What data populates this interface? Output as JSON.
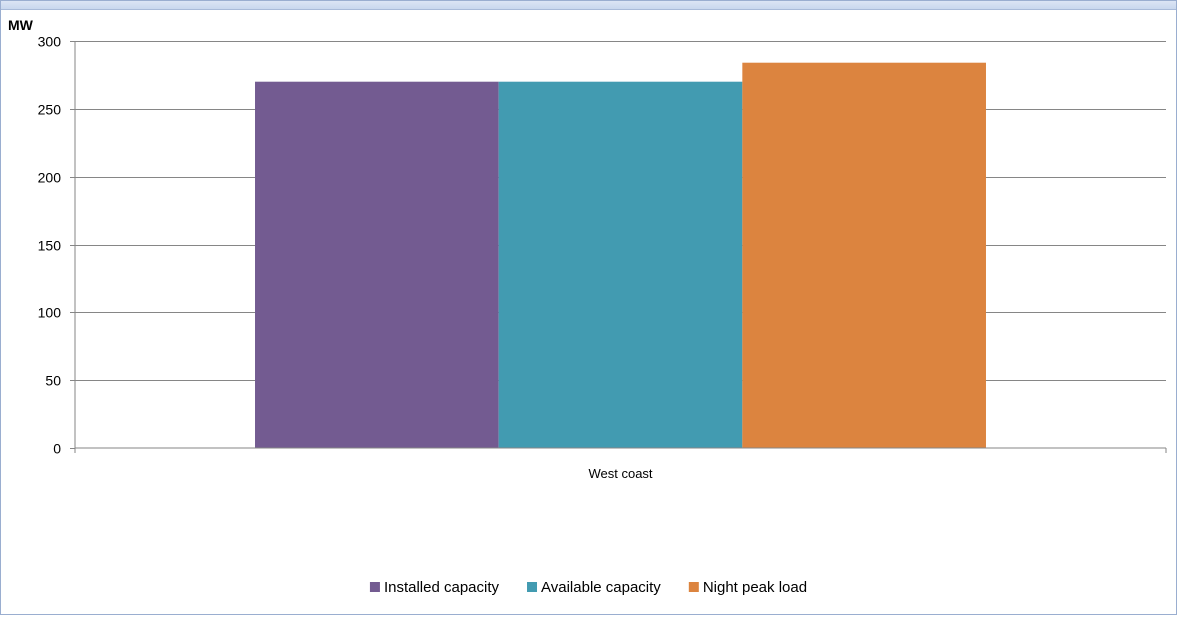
{
  "chart_data": {
    "type": "bar",
    "title": "",
    "xlabel": "",
    "ylabel": "MW",
    "ylim": [
      0,
      300
    ],
    "yticks": [
      0,
      50,
      100,
      150,
      200,
      250,
      300
    ],
    "categories": [
      "West coast"
    ],
    "grid": true,
    "legend_position": "bottom",
    "series": [
      {
        "name": "Installed capacity",
        "values": [
          270
        ],
        "color": "#735b91"
      },
      {
        "name": "Available capacity",
        "values": [
          270
        ],
        "color": "#429bb1"
      },
      {
        "name": "Night peak load",
        "values": [
          284
        ],
        "color": "#dc843f"
      }
    ]
  }
}
